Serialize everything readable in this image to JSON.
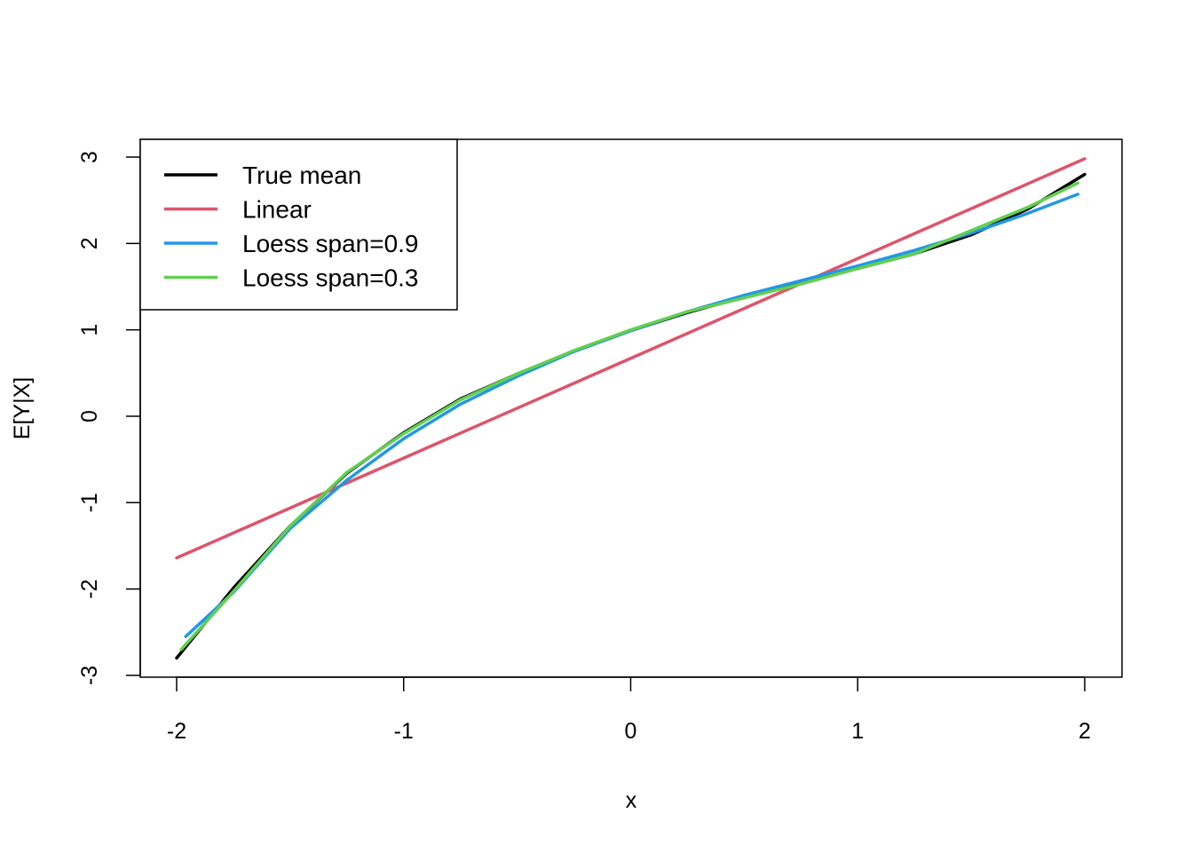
{
  "chart_data": {
    "type": "line",
    "title": "",
    "xlabel": "x",
    "ylabel": "E[Y|X]",
    "xlim": [
      -2,
      2
    ],
    "ylim": [
      -3,
      3
    ],
    "x_ticks": [
      "-2",
      "-1",
      "0",
      "1",
      "2"
    ],
    "y_ticks": [
      "-3",
      "-2",
      "-1",
      "0",
      "1",
      "2",
      "3"
    ],
    "grid": false,
    "legend_position": "top-left",
    "series": [
      {
        "name": "True mean",
        "color": "#000000",
        "x": [
          -2.0,
          -1.75,
          -1.5,
          -1.25,
          -1.0,
          -0.75,
          -0.5,
          -0.25,
          0.0,
          0.25,
          0.5,
          0.75,
          1.0,
          1.25,
          1.5,
          1.75,
          2.0
        ],
        "y": [
          -2.8,
          -1.99,
          -1.27,
          -0.66,
          -0.19,
          0.2,
          0.49,
          0.75,
          0.99,
          1.2,
          1.38,
          1.54,
          1.71,
          1.88,
          2.1,
          2.4,
          2.8
        ]
      },
      {
        "name": "Linear",
        "color": "#DF536B",
        "x": [
          -2.0,
          2.0
        ],
        "y": [
          -1.64,
          2.98
        ]
      },
      {
        "name": "Loess span=0.9",
        "color": "#2297E6",
        "x": [
          -1.96,
          -1.75,
          -1.5,
          -1.25,
          -1.0,
          -0.75,
          -0.5,
          -0.25,
          0.0,
          0.25,
          0.5,
          0.75,
          1.0,
          1.25,
          1.5,
          1.75,
          1.97
        ],
        "y": [
          -2.55,
          -2.04,
          -1.3,
          -0.74,
          -0.26,
          0.14,
          0.46,
          0.75,
          0.99,
          1.21,
          1.4,
          1.57,
          1.74,
          1.92,
          2.12,
          2.35,
          2.57
        ]
      },
      {
        "name": "Loess span=0.3",
        "color": "#61D04F",
        "x": [
          -1.98,
          -1.75,
          -1.5,
          -1.25,
          -1.0,
          -0.75,
          -0.5,
          -0.25,
          0.0,
          0.25,
          0.5,
          0.75,
          1.0,
          1.25,
          1.5,
          1.75,
          1.97
        ],
        "y": [
          -2.7,
          -2.03,
          -1.27,
          -0.65,
          -0.2,
          0.19,
          0.49,
          0.76,
          1.0,
          1.21,
          1.37,
          1.53,
          1.71,
          1.88,
          2.15,
          2.42,
          2.7
        ]
      }
    ]
  }
}
